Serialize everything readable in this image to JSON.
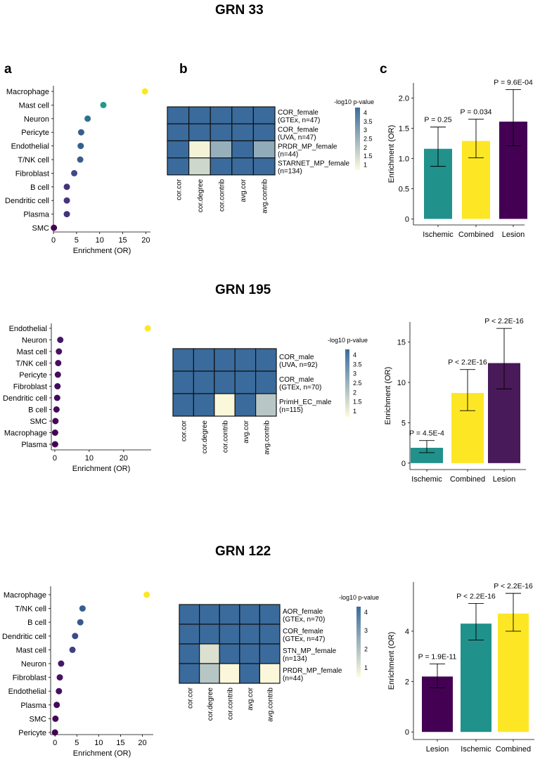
{
  "panel_labels": {
    "a": "a",
    "b": "b",
    "c": "c"
  },
  "colors": {
    "viridis": [
      "#440154",
      "#482878",
      "#3e4a89",
      "#31688e",
      "#26828e",
      "#1f9e89",
      "#35b779",
      "#6ece58",
      "#b5de2b",
      "#fde725"
    ],
    "heat_low": "#fffbdc",
    "heat_high": "#3a6b9c",
    "bar_teal": "#21918c",
    "bar_yellow": "#fde725",
    "bar_purple": "#440154"
  },
  "chart_data": [
    {
      "group": "GRN 33",
      "title": "GRN 33",
      "dot": {
        "type": "scatter",
        "cells": [
          "Macrophage",
          "Mast cell",
          "Neuron",
          "Pericyte",
          "Endothelial",
          "T/NK cell",
          "Fibroblast",
          "B cell",
          "Dendritic cell",
          "Plasma",
          "SMC"
        ],
        "values": [
          19.8,
          10.8,
          7.4,
          6.0,
          5.9,
          5.8,
          4.5,
          2.9,
          2.9,
          2.9,
          0.1
        ],
        "xlim": [
          0,
          21
        ],
        "xticks": [
          0,
          5,
          10,
          15,
          20
        ],
        "xlabel": "Enrichment (OR)"
      },
      "heat": {
        "type": "heatmap",
        "rows": [
          [
            "COR_female",
            "(GTEx, n=47)"
          ],
          [
            "COR_female",
            "(UVA, n=47)"
          ],
          [
            "PRDR_MP_female",
            "(n=44)"
          ],
          [
            "STARNET_MP_female",
            "(n=134)"
          ]
        ],
        "cols": [
          "cor.cor",
          "cor.degree",
          "cor.contrib",
          "avg.cor",
          "avg.contrib"
        ],
        "values": [
          [
            4.3,
            4.3,
            4.3,
            4.3,
            4.3
          ],
          [
            4.3,
            4.3,
            4.3,
            4.3,
            4.3
          ],
          [
            4.3,
            0.9,
            2.6,
            4.3,
            2.7
          ],
          [
            4.3,
            1.6,
            4.3,
            4.3,
            4.3
          ]
        ],
        "range": [
          0.7,
          4.3
        ],
        "legend_title": "-log10 p-value",
        "legend_ticks": [
          "4",
          "3.5",
          "3",
          "2.5",
          "2",
          "1.5",
          "1"
        ],
        "legend_values": [
          4,
          3.5,
          3,
          2.5,
          2,
          1.5,
          1
        ]
      },
      "bar": {
        "type": "bar",
        "categories": [
          "Ischemic",
          "Combined",
          "Lesion"
        ],
        "values": [
          1.16,
          1.29,
          1.61
        ],
        "err_low": [
          0.87,
          1.01,
          1.21
        ],
        "err_high": [
          1.52,
          1.65,
          2.14
        ],
        "pvals": [
          "P = 0.25",
          "P = 0.034",
          "P = 9.6E-04"
        ],
        "colors": [
          "#21918c",
          "#fde725",
          "#440154"
        ],
        "ylim": [
          -0.1,
          2.25
        ],
        "yticks": [
          "0",
          "0.5",
          "1.0",
          "1.5",
          "2.0"
        ],
        "ytick_values": [
          0,
          0.5,
          1.0,
          1.5,
          2.0
        ],
        "ylabel": "Enrichment (OR)"
      }
    },
    {
      "group": "GRN 195",
      "title": "GRN 195",
      "dot": {
        "type": "scatter",
        "cells": [
          "Endothelial",
          "Neuron",
          "Mast cell",
          "T/NK cell",
          "Pericyte",
          "Fibroblast",
          "Dendritic cell",
          "B cell",
          "SMC",
          "Macrophage",
          "Plasma"
        ],
        "values": [
          27.0,
          1.6,
          1.2,
          1.0,
          0.9,
          0.8,
          0.7,
          0.5,
          0.2,
          0.1,
          0.1
        ],
        "xlim": [
          -1,
          28
        ],
        "xticks": [
          0,
          10,
          20
        ],
        "xlabel": "Enrichment (OR)"
      },
      "heat": {
        "type": "heatmap",
        "rows": [
          [
            "COR_male",
            "(UVA, n=92)"
          ],
          [
            "COR_male",
            "(GTEx, n=70)"
          ],
          [
            "PrimH_EC_male",
            "(n=115)"
          ]
        ],
        "cols": [
          "cor.cor",
          "cor.degree",
          "cor.contrib",
          "avg.cor",
          "avg.contrib"
        ],
        "values": [
          [
            4.3,
            4.3,
            4.3,
            4.3,
            4.3
          ],
          [
            4.3,
            4.3,
            4.3,
            4.3,
            4.3
          ],
          [
            4.3,
            4.3,
            0.8,
            4.3,
            2.0
          ]
        ],
        "range": [
          0.7,
          4.3
        ],
        "legend_title": "-log10 p-value",
        "legend_ticks": [
          "4",
          "3.5",
          "3",
          "2.5",
          "2",
          "1.5",
          "1"
        ],
        "legend_values": [
          4,
          3.5,
          3,
          2.5,
          2,
          1.5,
          1
        ]
      },
      "bar": {
        "type": "bar",
        "categories": [
          "Ischemic",
          "Combined",
          "Lesion"
        ],
        "values": [
          1.9,
          8.7,
          12.4
        ],
        "err_low": [
          1.3,
          6.5,
          9.2
        ],
        "err_high": [
          2.8,
          11.6,
          16.7
        ],
        "pvals": [
          "P = 4.5E-4",
          "P < 2.2E-16",
          "P < 2.2E-16"
        ],
        "colors": [
          "#21918c",
          "#fde725",
          "#481a59"
        ],
        "ylim": [
          -0.8,
          17.5
        ],
        "yticks": [
          "0",
          "5",
          "10",
          "15"
        ],
        "ytick_values": [
          0,
          5,
          10,
          15
        ],
        "ylabel": "Enrichment (OR)"
      }
    },
    {
      "group": "GRN 122",
      "title": "GRN 122",
      "dot": {
        "type": "scatter",
        "cells": [
          "Macrophage",
          "T/NK cell",
          "B cell",
          "Dendritic cell",
          "Mast cell",
          "Neuron",
          "Fibroblast",
          "Endothelial",
          "Plasma",
          "SMC",
          "Pericyte"
        ],
        "values": [
          21.0,
          6.3,
          5.8,
          4.6,
          4.0,
          1.4,
          1.1,
          0.9,
          0.4,
          0.1,
          0.0
        ],
        "xlim": [
          -1,
          22.5
        ],
        "xticks": [
          0,
          5,
          10,
          15,
          20
        ],
        "xlabel": "Enrichment (OR)"
      },
      "heat": {
        "type": "heatmap",
        "rows": [
          [
            "AOR_female",
            "(GTEx, n=70)"
          ],
          [
            "COR_female",
            "(GTEx, n=47)"
          ],
          [
            "STN_MP_female",
            "(n=134)"
          ],
          [
            "PRDR_MP_female",
            "(n=44)"
          ]
        ],
        "cols": [
          "cor.cor",
          "cor.degree",
          "cor.contrib",
          "avg.cor",
          "avg.contrib"
        ],
        "values": [
          [
            4.3,
            4.3,
            4.3,
            4.3,
            4.3
          ],
          [
            4.3,
            4.3,
            4.3,
            4.3,
            4.3
          ],
          [
            4.3,
            1.2,
            4.3,
            4.3,
            4.3
          ],
          [
            4.3,
            1.9,
            0.6,
            4.3,
            0.6
          ]
        ],
        "range": [
          0.5,
          4.3
        ],
        "legend_title": "-log10 p-value",
        "legend_ticks": [
          "4",
          "3",
          "2",
          "1"
        ],
        "legend_values": [
          4,
          3,
          2,
          1
        ]
      },
      "bar": {
        "type": "bar",
        "categories": [
          "Lesion",
          "Ischemic",
          "Combined"
        ],
        "values": [
          2.2,
          4.3,
          4.7
        ],
        "err_low": [
          1.75,
          3.65,
          4.0
        ],
        "err_high": [
          2.7,
          5.1,
          5.5
        ],
        "pvals": [
          "P = 1.9E-11",
          "P < 2.2E-16",
          "P < 2.2E-16"
        ],
        "colors": [
          "#440154",
          "#21918c",
          "#fde725"
        ],
        "ylim": [
          -0.3,
          5.95
        ],
        "yticks": [
          "0",
          "2",
          "4"
        ],
        "ytick_values": [
          0,
          2,
          4
        ],
        "ylabel": "Enrichment (OR)"
      }
    }
  ]
}
